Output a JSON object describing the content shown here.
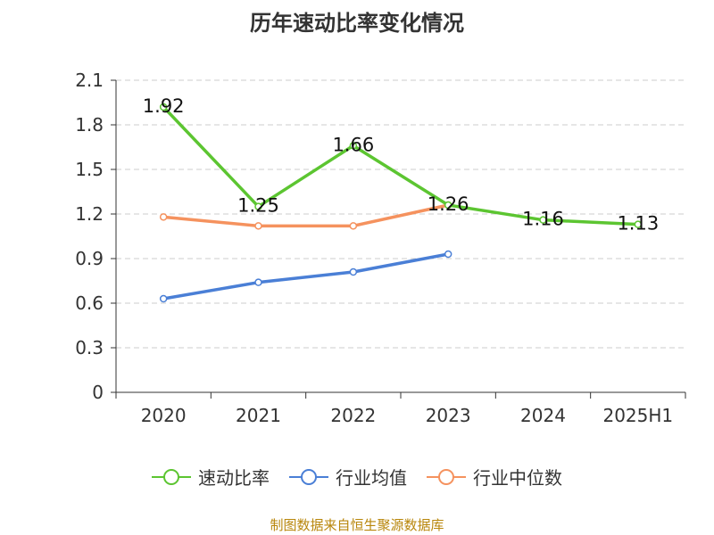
{
  "title": "历年速动比率变化情况",
  "source": "制图数据来自恒生聚源数据库",
  "chart_data": {
    "type": "line",
    "categories": [
      "2020",
      "2021",
      "2022",
      "2023",
      "2024",
      "2025H1"
    ],
    "yticks": [
      "0",
      "0.3",
      "0.6",
      "0.9",
      "1.2",
      "1.5",
      "1.8",
      "2.1"
    ],
    "ylim": [
      0,
      2.1
    ],
    "grid": true,
    "legend_position": "bottom",
    "series": [
      {
        "name": "速动比率",
        "color": "#5cc531",
        "values": [
          1.92,
          1.25,
          1.66,
          1.26,
          1.16,
          1.13
        ],
        "labels": [
          "1.92",
          "1.25",
          "1.66",
          "1.26",
          "1.16",
          "1.13"
        ]
      },
      {
        "name": "行业均值",
        "color": "#4a7fd6",
        "values": [
          0.63,
          0.74,
          0.81,
          0.93,
          null,
          null
        ]
      },
      {
        "name": "行业中位数",
        "color": "#f5925e",
        "values": [
          1.18,
          1.12,
          1.12,
          1.26,
          null,
          null
        ]
      }
    ]
  }
}
